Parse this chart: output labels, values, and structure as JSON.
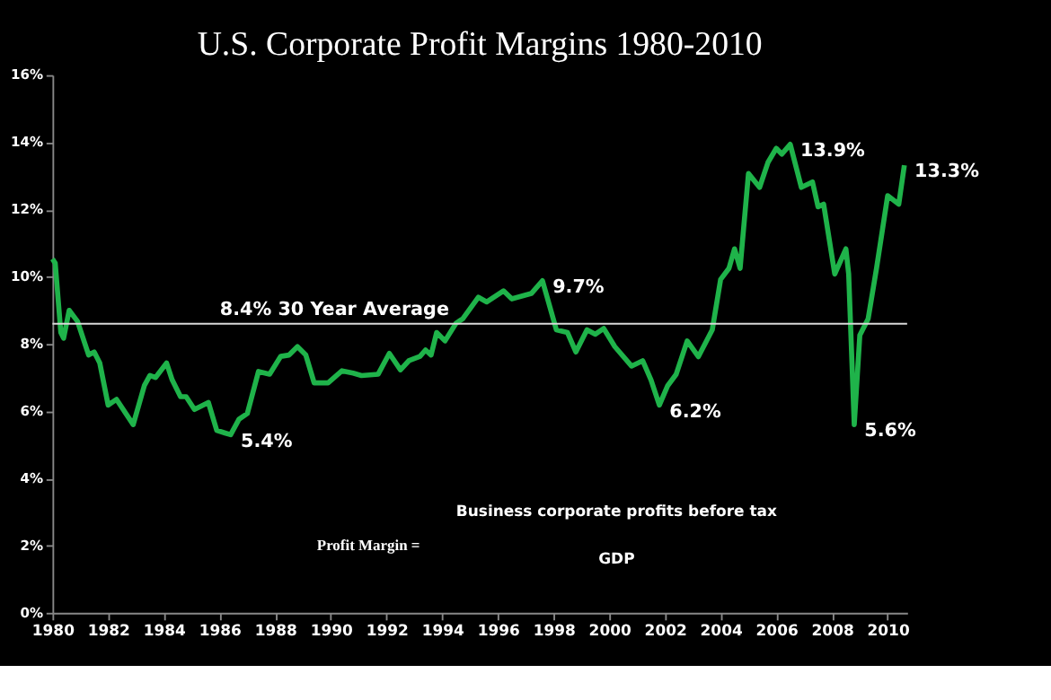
{
  "chart_data": {
    "type": "line",
    "title": "U.S. Corporate Profit Margins 1980-2010",
    "series": [
      {
        "color": "#1fb34a",
        "x": [
          1980.0,
          1980.1,
          1980.3,
          1980.4,
          1980.6,
          1980.9,
          1981.3,
          1981.5,
          1981.7,
          1982.0,
          1982.3,
          1982.9,
          1983.3,
          1983.5,
          1983.7,
          1984.1,
          1984.3,
          1984.6,
          1984.8,
          1985.1,
          1985.6,
          1985.9,
          1986.2,
          1986.4,
          1986.7,
          1987.0,
          1987.4,
          1987.8,
          1988.2,
          1988.5,
          1988.8,
          1989.1,
          1989.4,
          1989.9,
          1990.4,
          1990.8,
          1991.1,
          1991.7,
          1992.1,
          1992.5,
          1992.8,
          1993.2,
          1993.4,
          1993.6,
          1993.8,
          1994.1,
          1994.5,
          1994.74,
          1995.3,
          1995.6,
          1996.2,
          1996.5,
          1997.2,
          1997.6,
          1998.1,
          1998.5,
          1998.8,
          1999.2,
          1999.5,
          1999.8,
          2000.2,
          2000.8,
          2001.2,
          2001.5,
          2001.8,
          2002.1,
          2002.4,
          2002.8,
          2003.2,
          2003.7,
          2004.0,
          2004.3,
          2004.5,
          2004.7,
          2005.0,
          2005.4,
          2005.7,
          2006.0,
          2006.2,
          2006.5,
          2006.9,
          2007.3,
          2007.5,
          2007.7,
          2008.1,
          2008.5,
          2008.6,
          2008.8,
          2009.0,
          2009.3,
          2009.6,
          2010.0,
          2010.4,
          2010.6
        ],
        "values": [
          10.53,
          10.4,
          8.34,
          8.17,
          9.0,
          8.67,
          7.67,
          7.76,
          7.43,
          6.18,
          6.35,
          5.6,
          6.76,
          7.06,
          7.0,
          7.43,
          6.93,
          6.43,
          6.43,
          6.05,
          6.26,
          5.43,
          5.35,
          5.3,
          5.76,
          5.93,
          7.18,
          7.1,
          7.63,
          7.67,
          7.92,
          7.67,
          6.84,
          6.84,
          7.2,
          7.13,
          7.06,
          7.1,
          7.72,
          7.23,
          7.5,
          7.63,
          7.82,
          7.67,
          8.34,
          8.09,
          8.62,
          8.75,
          9.39,
          9.25,
          9.58,
          9.34,
          9.5,
          9.88,
          8.42,
          8.34,
          7.76,
          8.42,
          8.29,
          8.46,
          7.92,
          7.34,
          7.5,
          6.93,
          6.18,
          6.76,
          7.09,
          8.09,
          7.62,
          8.42,
          9.92,
          10.25,
          10.83,
          10.25,
          13.07,
          12.66,
          13.4,
          13.82,
          13.65,
          13.94,
          12.66,
          12.82,
          12.08,
          12.16,
          10.08,
          10.83,
          10.08,
          5.6,
          8.26,
          8.75,
          10.25,
          12.41,
          12.16,
          13.32
        ]
      }
    ],
    "xlim": [
      1980,
      2010.7
    ],
    "xticks": [
      1980,
      1982,
      1984,
      1986,
      1988,
      1990,
      1992,
      1994,
      1996,
      1998,
      2000,
      2002,
      2004,
      2006,
      2008,
      2010
    ],
    "ylim": [
      0,
      16
    ],
    "yticks": [
      {
        "value": 0,
        "label": "0%"
      },
      {
        "value": 2,
        "label": "2%"
      },
      {
        "value": 4,
        "label": "4%"
      },
      {
        "value": 6,
        "label": "6%"
      },
      {
        "value": 8,
        "label": "8%"
      },
      {
        "value": 10,
        "label": "10%"
      },
      {
        "value": 12,
        "label": "12%"
      },
      {
        "value": 14,
        "label": "14%"
      },
      {
        "value": 16,
        "label": "16%"
      }
    ],
    "ref_lines": [
      {
        "axis": "y",
        "value": 8.6,
        "label": "8.4% 30 Year Average",
        "color": "#d9d9d9"
      }
    ],
    "annotations": [
      {
        "text": "5.4%",
        "x": 1986.4,
        "y": 5.3
      },
      {
        "text": "9.7%",
        "x": 1997.6,
        "y": 9.88
      },
      {
        "text": "6.2%",
        "x": 2001.8,
        "y": 6.18
      },
      {
        "text": "13.9%",
        "x": 2006.5,
        "y": 13.94
      },
      {
        "text": "5.6%",
        "x": 2008.8,
        "y": 5.6
      },
      {
        "text": "13.3%",
        "x": 2010.6,
        "y": 13.32
      },
      "Profit Margin =",
      "Business corporate profits before tax",
      "GDP"
    ],
    "grid": false,
    "line_style": "solid",
    "marker": "none"
  }
}
